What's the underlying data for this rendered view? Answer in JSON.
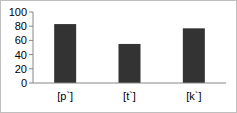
{
  "chart_data": {
    "type": "bar",
    "categories": [
      "[p`]",
      "[t`]",
      "[k`]"
    ],
    "values": [
      83,
      55,
      77
    ],
    "color": "#333333",
    "ylim": [
      0,
      100
    ],
    "yticks": [
      0,
      20,
      40,
      60,
      80,
      100
    ],
    "grid": false
  }
}
